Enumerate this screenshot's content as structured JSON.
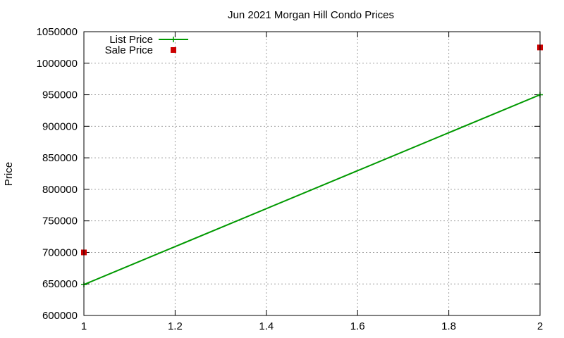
{
  "chart_data": {
    "type": "line",
    "title": "Jun 2021 Morgan Hill Condo Prices",
    "xlabel": "",
    "ylabel": "Price",
    "xlim": [
      1,
      2
    ],
    "ylim": [
      600000,
      1050000
    ],
    "x_ticks": [
      "1",
      "1.2",
      "1.4",
      "1.6",
      "1.8",
      "2"
    ],
    "y_ticks": [
      "600000",
      "650000",
      "700000",
      "750000",
      "800000",
      "850000",
      "900000",
      "950000",
      "1000000",
      "1050000"
    ],
    "grid": true,
    "legend_position": "top-left",
    "series": [
      {
        "name": "List Price",
        "style": "line-with-plus-markers",
        "color": "#009900",
        "points": [
          {
            "x": 1,
            "y": 649000
          },
          {
            "x": 2,
            "y": 950000
          }
        ]
      },
      {
        "name": "Sale Price",
        "style": "square-markers",
        "color": "#cc0000",
        "points": [
          {
            "x": 1,
            "y": 700000
          },
          {
            "x": 2,
            "y": 1025000
          }
        ]
      }
    ]
  }
}
